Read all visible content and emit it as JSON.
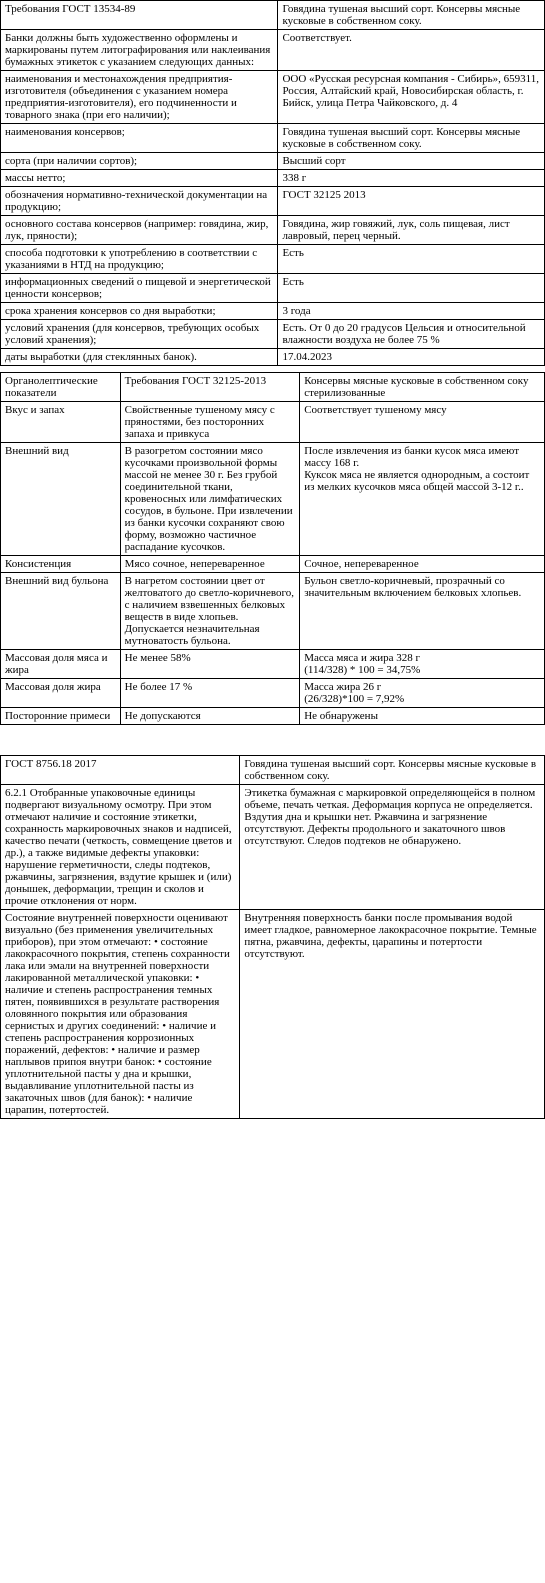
{
  "table1": {
    "col_widths": [
      "51%",
      "49%"
    ],
    "rows": [
      [
        "Требования ГОСТ 13534-89",
        "Говядина тушеная высший сорт. Консервы мясные кусковые в собственном соку."
      ],
      [
        "Банки должны быть художественно оформлены и маркированы путем литографирования или наклеивания бумажных этикеток с указанием следующих данных:",
        "Соответствует."
      ],
      [
        "наименования и местонахождения предприятия-изготовителя (объединения с указанием номера предприятия-изготовителя), его подчиненности и товарного знака (при его наличии);",
        "ООО «Русская ресурсная компания - Сибирь», 659311, Россия, Алтайский край, Новосибирская область, г. Бийск, улица Петра Чайковского, д. 4"
      ],
      [
        "наименования консервов;",
        "Говядина тушеная высший сорт. Консервы мясные кусковые в собственном соку."
      ],
      [
        "сорта (при наличии сортов);",
        "Высший сорт"
      ],
      [
        "массы нетто;",
        "338 г"
      ],
      [
        "обозначения нормативно-технической документации на продукцию;",
        "ГОСТ 32125 2013"
      ],
      [
        "основного состава консервов (например: говядина, жир, лук, пряности);",
        "Говядина, жир говяжий, лук, соль пищевая, лист лавровый, перец черный."
      ],
      [
        "способа подготовки к употреблению в соответствии с указаниями в НТД на продукцию;",
        "Есть"
      ],
      [
        "информационных сведений о пищевой и энергетической ценности консервов;",
        "Есть"
      ],
      [
        "срока хранения консервов со дня выработки;",
        "3 года"
      ],
      [
        "условий хранения (для консервов, требующих особых условий хранения);",
        "Есть. От 0 до 20 градусов Цельсия и относительной влажности воздуха не более 75 %"
      ],
      [
        "даты выработки (для стеклянных банок).",
        "17.04.2023"
      ]
    ]
  },
  "table2": {
    "col_widths": [
      "22%",
      "33%",
      "45%"
    ],
    "rows": [
      [
        "Органолептические показатели",
        "Требования ГОСТ 32125-2013",
        "Консервы мясные кусковые в собственном соку стерилизованные"
      ],
      [
        "Вкус и запах",
        "Свойственные тушеному мясу с пряностями, без посторонних запаха и привкуса",
        "Соответствует тушеному мясу"
      ],
      [
        "Внешний вид",
        "В разогретом состоянии мясо кусочками произвольной формы массой не менее 30 г. Без грубой соединительной ткани, кровеносных или лимфатических сосудов, в бульоне. При извлечении из банки кусочки сохраняют свою форму, возможно частичное распадание кусочков.",
        "После извлечения из банки кусок мяса имеют массу 168 г.\nКуксок мяса не является однородным, а состоит из мелких кусочков мяса общей массой 3-12 г.."
      ],
      [
        "Консистенция",
        "Мясо сочное, непереваренное",
        "Сочное, непереваренное"
      ],
      [
        "Внешний вид бульона",
        "В нагретом состоянии цвет от желтоватого до светло-коричневого, с наличием взвешенных белковых веществ в виде хлопьев. Допускается незначительная мутноватость бульона.",
        "Бульон светло-коричневый, прозрачный со значительным включением белковых хлопьев."
      ],
      [
        "Массовая доля мяса и жира",
        "Не менее 58%",
        "Масса мяса и жира 328 г\n(114/328) * 100 = 34,75%"
      ],
      [
        "Массовая доля жира",
        "Не более 17 %",
        "Масса жира 26 г\n(26/328)*100 = 7,92%"
      ],
      [
        "Посторонние примеси",
        "Не допускаются",
        "Не обнаружены"
      ]
    ]
  },
  "table3": {
    "col_widths": [
      "44%",
      "56%"
    ],
    "rows": [
      [
        "ГОСТ 8756.18 2017",
        "Говядина тушеная высший сорт. Консервы мясные кусковые в собственном соку."
      ],
      [
        "6.2.1 Отобранные упаковочные единицы подвергают визуальному осмотру. При этом отмечают наличие и состояние этикетки, сохранность маркировочных знаков и надписей, качество печати (четкость, совмещение цветов и др.), а также видимые дефекты упаковки: нарушение герметичности, следы подтеков, ржавчины, загрязнения, вздутие крышек и (или) донышек, деформации, трещин и сколов и прочие отклонения от норм.",
        "Этикетка бумажная с маркировкой определяющейся в полном объеме, печать четкая. Деформация корпуса не определяется. Вздутия дна и крышки нет. Ржавчина и загрязнение отсутствуют. Дефекты продольного и закаточного швов отсутствуют. Следов подтеков не обнаружено."
      ],
      [
        "Состояние внутренней поверхности оценивают визуально (без применения увеличительных приборов), при этом отмечают: • состояние лакокрасочного покрытия, степень сохранности лака или эмали на внутренней поверхности лакированной металлической упаковки: • наличие и степень распространения темных пятен, появившихся в результате растворения оловянного покрытия или образования сернистых и других соединений: • наличие и степень распространения коррозионных поражений, дефектов: • наличие и размер наплывов припоя внутри банок: • состояние уплотнительной пасты у дна и крышки, выдавливание уплотнительной пасты из закаточных швов (для банок): • наличие царапин, потертостей.",
        "Внутренняя поверхность банки после промывания водой имеет гладкое, равномерное лакокрасочное покрытие. Темные пятна, ржавчина, дефекты, царапины и потертости отсутствуют."
      ]
    ]
  }
}
